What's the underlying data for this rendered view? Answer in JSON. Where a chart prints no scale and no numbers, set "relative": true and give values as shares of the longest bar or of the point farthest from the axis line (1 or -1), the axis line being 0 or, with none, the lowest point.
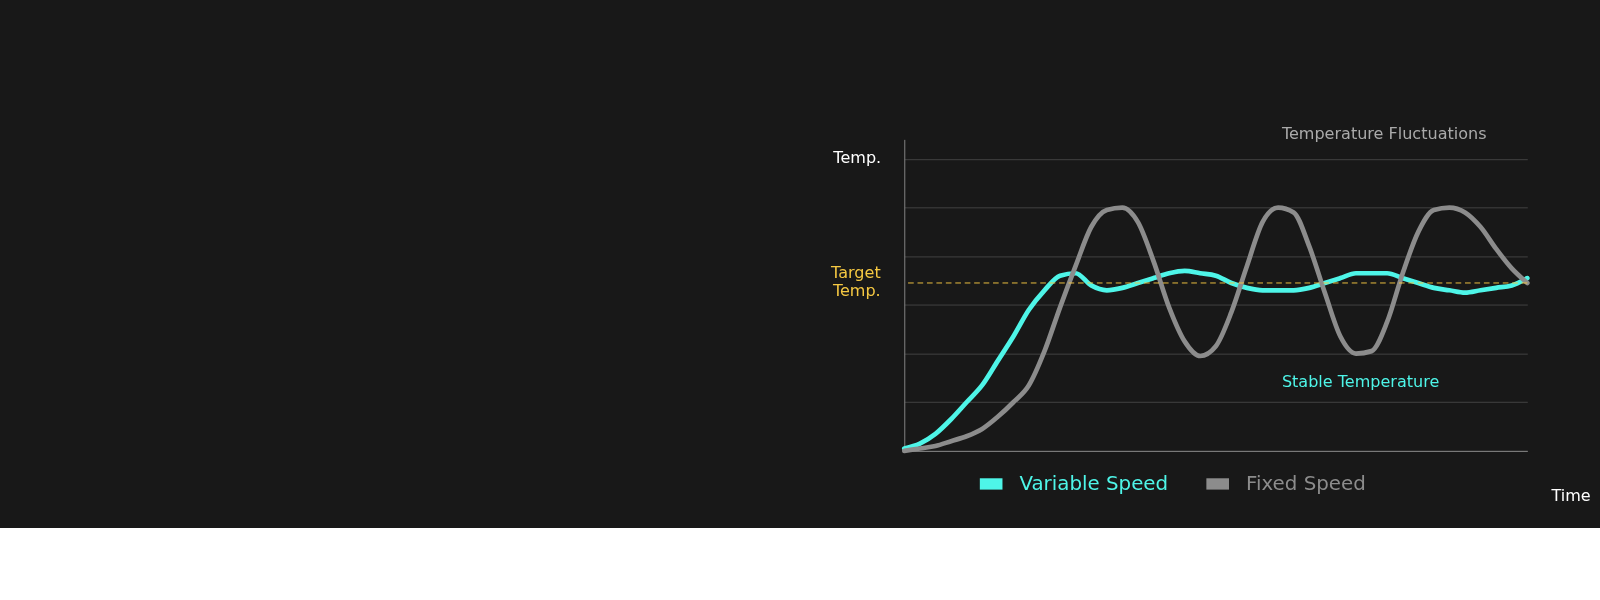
{
  "chart_data": {
    "type": "line",
    "relative": true,
    "xlabel": "Time",
    "ylabel": "Temp.",
    "categories": [
      null,
      null,
      null,
      null,
      null,
      null,
      null,
      null,
      null,
      null,
      null,
      null,
      null,
      null,
      null,
      null,
      null,
      null,
      null,
      null,
      null,
      null,
      null,
      null,
      null,
      null,
      null,
      null,
      null,
      null,
      null,
      null,
      null,
      null,
      null,
      null,
      null,
      null,
      null,
      null,
      null
    ],
    "series": [
      {
        "name": "Variable Speed",
        "color": "#4ef5e8",
        "values": [
          0.01,
          0.03,
          0.07,
          0.13,
          0.2,
          0.27,
          0.37,
          0.47,
          0.58,
          0.66,
          0.72,
          0.73,
          0.68,
          0.66,
          0.67,
          0.69,
          0.71,
          0.73,
          0.74,
          0.73,
          0.72,
          0.69,
          0.67,
          0.66,
          0.66,
          0.66,
          0.67,
          0.69,
          0.71,
          0.73,
          0.73,
          0.73,
          0.71,
          0.69,
          0.67,
          0.66,
          0.65,
          0.66,
          0.67,
          0.68,
          0.71
        ]
      },
      {
        "name": "Fixed Speed",
        "color": "#8c8c8c",
        "values": [
          0.0,
          0.01,
          0.02,
          0.04,
          0.06,
          0.09,
          0.14,
          0.2,
          0.27,
          0.41,
          0.59,
          0.76,
          0.92,
          0.99,
          1.0,
          0.94,
          0.78,
          0.59,
          0.45,
          0.39,
          0.43,
          0.57,
          0.76,
          0.94,
          1.0,
          0.98,
          0.84,
          0.65,
          0.47,
          0.4,
          0.41,
          0.53,
          0.73,
          0.9,
          0.99,
          1.0,
          0.98,
          0.92,
          0.83,
          0.75,
          0.69
        ]
      }
    ],
    "ref_lines": [
      {
        "axis": "y",
        "value": 0.69,
        "label": "Target\nTemp.",
        "color": "#f5c842",
        "line_style": "dashed"
      }
    ],
    "annotations": [
      "Temperature Fluctuations",
      "Stable Temperature"
    ],
    "grid": "y",
    "legend": "bottom",
    "marker": "none",
    "line_style": "solid"
  }
}
